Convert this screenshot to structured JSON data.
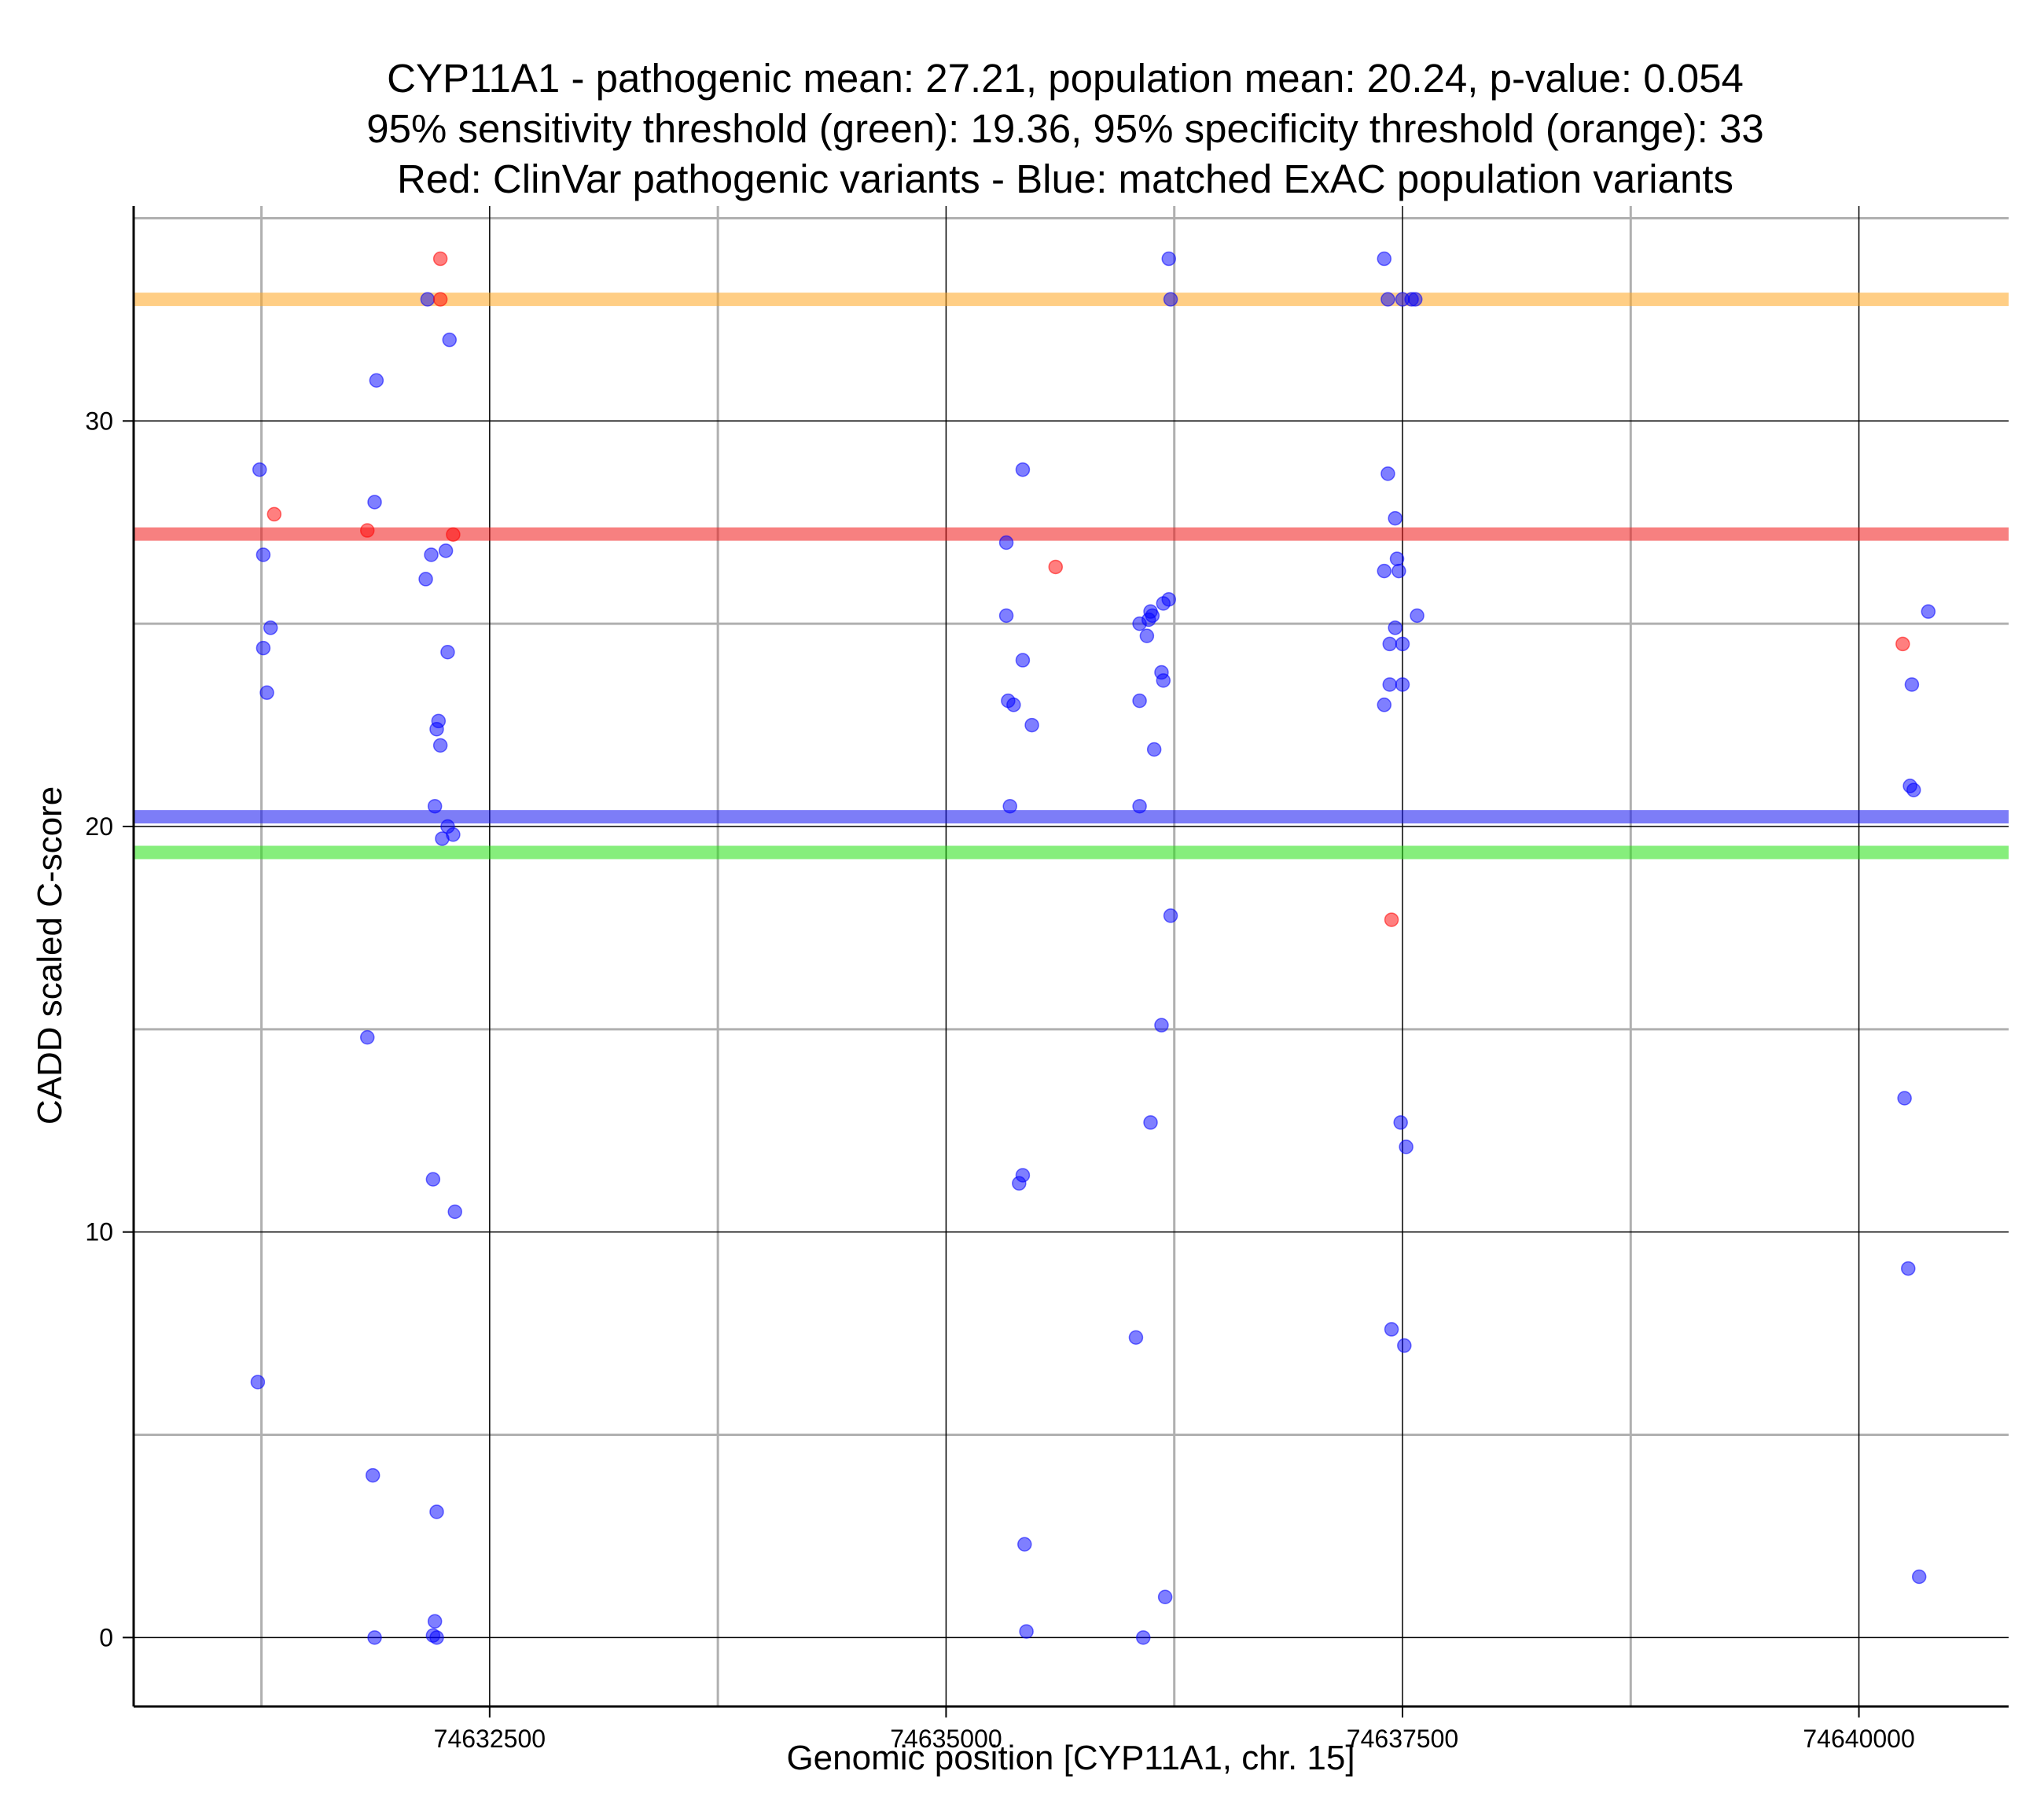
{
  "chart_data": {
    "type": "scatter",
    "title": [
      "CYP11A1 - pathogenic mean: 27.21, population mean: 20.24, p-value: 0.054",
      "95% sensitivity threshold (green): 19.36, 95% specificity threshold (orange): 33",
      "Red: ClinVar pathogenic variants - Blue: matched ExAC population variants"
    ],
    "xlabel": "Genomic position [CYP11A1, chr. 15]",
    "ylabel": "CADD scaled C-score",
    "xlim": [
      74630550,
      74640820
    ],
    "ylim": [
      -1.7,
      35.3
    ],
    "x_ticks": [
      74632500,
      74635000,
      74637500,
      74640000
    ],
    "x_tick_labels": [
      "74632500",
      "74635000",
      "74637500",
      "74640000"
    ],
    "x_minor_grid": [
      74631250,
      74633750,
      74636250,
      74638750
    ],
    "y_ticks": [
      0,
      10,
      20,
      30
    ],
    "y_tick_labels": [
      "0",
      "10",
      "20",
      "30"
    ],
    "y_minor_grid": [
      5,
      15,
      25,
      35
    ],
    "grid": true,
    "reference_lines": [
      {
        "name": "95% specificity threshold",
        "value": 33,
        "color": "#ffa620"
      },
      {
        "name": "pathogenic mean",
        "value": 27.21,
        "color": "#f01818"
      },
      {
        "name": "population mean",
        "value": 20.24,
        "color": "#1212f0"
      },
      {
        "name": "95% sensitivity threshold",
        "value": 19.36,
        "color": "#22e010"
      }
    ],
    "series": [
      {
        "name": "ClinVar pathogenic variants",
        "color": "#ff0000",
        "points": [
          [
            74631320,
            27.7
          ],
          [
            74631830,
            27.3
          ],
          [
            74632230,
            33.0
          ],
          [
            74632230,
            34.0
          ],
          [
            74632300,
            27.2
          ],
          [
            74635600,
            26.4
          ],
          [
            74637440,
            17.7
          ],
          [
            74640240,
            24.5
          ]
        ]
      },
      {
        "name": "matched ExAC population variants",
        "color": "#0000ff",
        "points": [
          [
            74631240,
            28.8
          ],
          [
            74631260,
            26.7
          ],
          [
            74631260,
            24.4
          ],
          [
            74631280,
            23.3
          ],
          [
            74631300,
            24.9
          ],
          [
            74631230,
            6.3
          ],
          [
            74631880,
            31.0
          ],
          [
            74631870,
            28.0
          ],
          [
            74631830,
            14.8
          ],
          [
            74631860,
            4.0
          ],
          [
            74631870,
            0.0
          ],
          [
            74632150,
            26.1
          ],
          [
            74632180,
            26.7
          ],
          [
            74632160,
            33.0
          ],
          [
            74632260,
            26.8
          ],
          [
            74632280,
            32.0
          ],
          [
            74632270,
            24.3
          ],
          [
            74632220,
            22.6
          ],
          [
            74632210,
            22.4
          ],
          [
            74632230,
            22.0
          ],
          [
            74632200,
            20.5
          ],
          [
            74632270,
            20.0
          ],
          [
            74632240,
            19.7
          ],
          [
            74632300,
            19.8
          ],
          [
            74632190,
            11.3
          ],
          [
            74632310,
            10.5
          ],
          [
            74632210,
            3.1
          ],
          [
            74632200,
            0.4
          ],
          [
            74632190,
            0.05
          ],
          [
            74632210,
            0.0
          ],
          [
            74635330,
            27.0
          ],
          [
            74635420,
            28.8
          ],
          [
            74635330,
            25.2
          ],
          [
            74635420,
            24.1
          ],
          [
            74635340,
            23.1
          ],
          [
            74635370,
            23.0
          ],
          [
            74635470,
            22.5
          ],
          [
            74635350,
            20.5
          ],
          [
            74635420,
            11.4
          ],
          [
            74635400,
            11.2
          ],
          [
            74635430,
            2.3
          ],
          [
            74635440,
            0.15
          ],
          [
            74636060,
            25.0
          ],
          [
            74636110,
            25.1
          ],
          [
            74636120,
            25.3
          ],
          [
            74636130,
            25.2
          ],
          [
            74636190,
            25.5
          ],
          [
            74636220,
            25.6
          ],
          [
            74636100,
            24.7
          ],
          [
            74636180,
            23.8
          ],
          [
            74636190,
            23.6
          ],
          [
            74636060,
            23.1
          ],
          [
            74636140,
            21.9
          ],
          [
            74636060,
            20.5
          ],
          [
            74636230,
            17.8
          ],
          [
            74636180,
            15.1
          ],
          [
            74636120,
            12.7
          ],
          [
            74636040,
            7.4
          ],
          [
            74636200,
            1.0
          ],
          [
            74636080,
            0.0
          ],
          [
            74636220,
            34.0
          ],
          [
            74636230,
            33.0
          ],
          [
            74637400,
            34.0
          ],
          [
            74637420,
            33.0
          ],
          [
            74637420,
            28.7
          ],
          [
            74637460,
            27.6
          ],
          [
            74637470,
            26.6
          ],
          [
            74637400,
            26.3
          ],
          [
            74637480,
            26.3
          ],
          [
            74637580,
            25.2
          ],
          [
            74637460,
            24.9
          ],
          [
            74637430,
            24.5
          ],
          [
            74637500,
            24.5
          ],
          [
            74637430,
            23.5
          ],
          [
            74637500,
            23.5
          ],
          [
            74637400,
            23.0
          ],
          [
            74637490,
            12.7
          ],
          [
            74637520,
            12.1
          ],
          [
            74637440,
            7.6
          ],
          [
            74637510,
            7.2
          ],
          [
            74637500,
            33.0
          ],
          [
            74637550,
            33.0
          ],
          [
            74637570,
            33.0
          ],
          [
            74640250,
            13.3
          ],
          [
            74640290,
            23.5
          ],
          [
            74640280,
            21.0
          ],
          [
            74640300,
            20.9
          ],
          [
            74640380,
            25.3
          ],
          [
            74640270,
            9.1
          ],
          [
            74640330,
            1.5
          ]
        ]
      }
    ]
  }
}
